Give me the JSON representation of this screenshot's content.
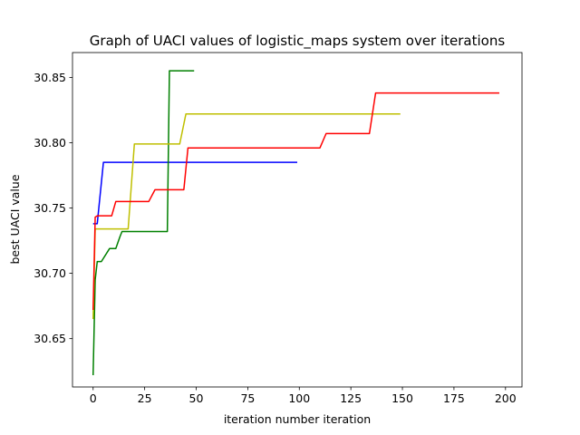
{
  "chart_data": {
    "type": "line",
    "title": "Graph of UACI values of logistic_maps system over iterations",
    "xlabel": "iteration number iteration",
    "ylabel": "best UACI value",
    "xlim": [
      -10,
      208
    ],
    "ylim": [
      30.613,
      30.869
    ],
    "xticks": [
      0,
      25,
      50,
      75,
      100,
      125,
      150,
      175,
      200
    ],
    "yticks": [
      30.65,
      30.7,
      30.75,
      30.8,
      30.85
    ],
    "ytick_labels": [
      "30.65",
      "30.70",
      "30.75",
      "30.80",
      "30.85"
    ],
    "grid": false,
    "legend": "none",
    "series": [
      {
        "color": "#0000ff",
        "x": [
          0,
          2,
          5,
          99
        ],
        "y": [
          30.738,
          30.738,
          30.785,
          30.785
        ]
      },
      {
        "color": "#008000",
        "x": [
          0,
          1,
          2,
          4,
          8,
          11,
          13,
          14,
          18,
          36,
          37,
          49
        ],
        "y": [
          30.622,
          30.695,
          30.709,
          30.709,
          30.719,
          30.719,
          30.728,
          30.732,
          30.732,
          30.732,
          30.855,
          30.855
        ]
      },
      {
        "color": "#bfbf00",
        "x": [
          0,
          1,
          2,
          17,
          20,
          42,
          45,
          149
        ],
        "y": [
          30.665,
          30.734,
          30.734,
          30.734,
          30.799,
          30.799,
          30.822,
          30.822
        ]
      },
      {
        "color": "#ff0000",
        "x": [
          0,
          1,
          2,
          9,
          11,
          27,
          30,
          44,
          46,
          110,
          113,
          134,
          137,
          197
        ],
        "y": [
          30.672,
          30.743,
          30.744,
          30.744,
          30.755,
          30.755,
          30.764,
          30.764,
          30.796,
          30.796,
          30.807,
          30.807,
          30.838,
          30.838
        ]
      }
    ]
  }
}
